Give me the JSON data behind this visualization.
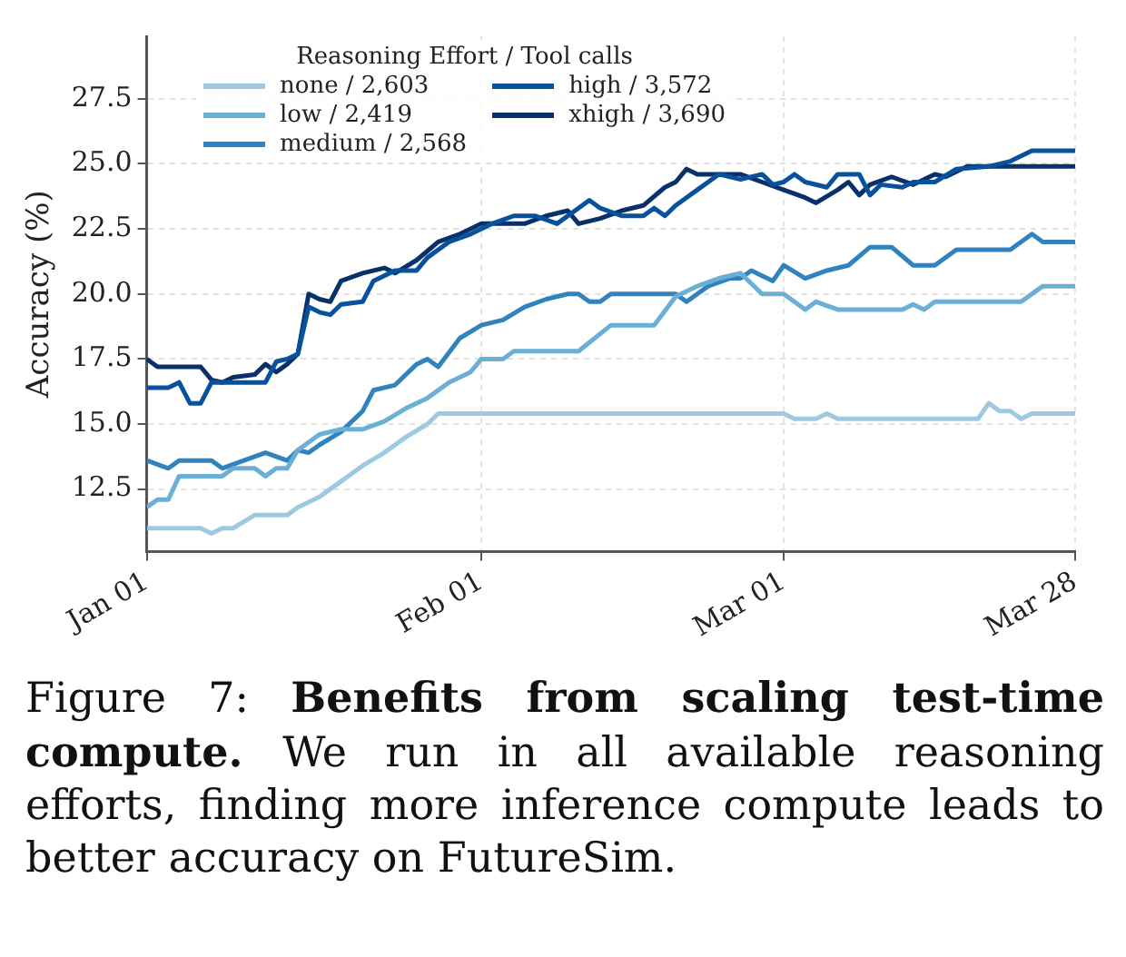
{
  "chart_data": {
    "type": "line",
    "ylabel": "Accuracy (%)",
    "legend_title": "Reasoning Effort / Tool calls",
    "legend": "top left",
    "grid": true,
    "line_style": "solid",
    "marker": "none",
    "xlim": [
      "--01-01",
      "--03-28"
    ],
    "xticks": [
      {
        "value": "--01-01",
        "label": "Jan 01"
      },
      {
        "value": "--02-01",
        "label": "Feb 01"
      },
      {
        "value": "--03-01",
        "label": "Mar 01"
      },
      {
        "value": "--03-28",
        "label": "Mar 28"
      }
    ],
    "ylim": [
      10.1,
      29.9
    ],
    "yticks": [
      {
        "value": 12.5,
        "label": "12.5"
      },
      {
        "value": 15,
        "label": "15.0"
      },
      {
        "value": 17.5,
        "label": "17.5"
      },
      {
        "value": 20,
        "label": "20.0"
      },
      {
        "value": 22.5,
        "label": "22.5"
      },
      {
        "value": 25,
        "label": "25.0"
      },
      {
        "value": 27.5,
        "label": "27.5"
      }
    ],
    "series": [
      {
        "name": "none / 2,603",
        "color": "#9ecae1",
        "x": [
          "--01-01",
          "--01-06",
          "--01-07",
          "--01-08",
          "--01-09",
          "--01-11",
          "--01-14",
          "--01-15",
          "--01-17",
          "--01-19",
          "--01-21",
          "--01-23",
          "--01-25",
          "--01-27",
          "--01-28",
          "--03-01",
          "--03-02",
          "--03-04",
          "--03-05",
          "--03-06",
          "--03-19",
          "--03-20",
          "--03-21",
          "--03-22",
          "--03-23",
          "--03-24",
          "--03-28"
        ],
        "values": [
          11.0,
          11.0,
          10.8,
          11.0,
          11.0,
          11.5,
          11.5,
          11.8,
          12.2,
          12.8,
          13.4,
          13.9,
          14.5,
          15.0,
          15.4,
          15.4,
          15.2,
          15.2,
          15.4,
          15.2,
          15.2,
          15.8,
          15.5,
          15.5,
          15.2,
          15.4,
          15.4
        ]
      },
      {
        "name": "low / 2,419",
        "color": "#6baed6",
        "x": [
          "--01-01",
          "--01-02",
          "--01-03",
          "--01-04",
          "--01-08",
          "--01-09",
          "--01-11",
          "--01-12",
          "--01-13",
          "--01-14",
          "--01-15",
          "--01-17",
          "--01-19",
          "--01-21",
          "--01-23",
          "--01-25",
          "--01-27",
          "--01-29",
          "--01-31",
          "--02-01",
          "--02-03",
          "--02-04",
          "--02-10",
          "--02-13",
          "--02-17",
          "--02-19",
          "--02-21",
          "--02-23",
          "--02-25",
          "--02-27",
          "--03-01",
          "--03-03",
          "--03-04",
          "--03-06",
          "--03-12",
          "--03-13",
          "--03-14",
          "--03-15",
          "--03-23",
          "--03-25",
          "--03-28"
        ],
        "values": [
          11.8,
          12.1,
          12.1,
          13.0,
          13.0,
          13.3,
          13.3,
          13.0,
          13.3,
          13.3,
          14.0,
          14.6,
          14.8,
          14.8,
          15.1,
          15.6,
          16.0,
          16.6,
          17.0,
          17.5,
          17.5,
          17.8,
          17.8,
          18.8,
          18.8,
          19.9,
          20.3,
          20.6,
          20.8,
          20.0,
          20.0,
          19.4,
          19.7,
          19.4,
          19.4,
          19.6,
          19.4,
          19.7,
          19.7,
          20.3,
          20.3
        ]
      },
      {
        "name": "medium / 2,568",
        "color": "#3182bd",
        "x": [
          "--01-01",
          "--01-03",
          "--01-04",
          "--01-07",
          "--01-08",
          "--01-10",
          "--01-12",
          "--01-14",
          "--01-15",
          "--01-16",
          "--01-17",
          "--01-19",
          "--01-21",
          "--01-22",
          "--01-24",
          "--01-26",
          "--01-27",
          "--01-28",
          "--01-30",
          "--02-01",
          "--02-03",
          "--02-05",
          "--02-07",
          "--02-09",
          "--02-10",
          "--02-11",
          "--02-12",
          "--02-13",
          "--02-19",
          "--02-20",
          "--02-21",
          "--02-22",
          "--02-24",
          "--02-25",
          "--02-26",
          "--02-27",
          "--02-28",
          "--03-01",
          "--03-03",
          "--03-05",
          "--03-07",
          "--03-09",
          "--03-11",
          "--03-13",
          "--03-15",
          "--03-17",
          "--03-22",
          "--03-24",
          "--03-25",
          "--03-28"
        ],
        "values": [
          13.6,
          13.3,
          13.6,
          13.6,
          13.3,
          13.6,
          13.9,
          13.6,
          14.0,
          13.9,
          14.2,
          14.7,
          15.5,
          16.3,
          16.5,
          17.3,
          17.5,
          17.2,
          18.3,
          18.8,
          19.0,
          19.5,
          19.8,
          20.0,
          20.0,
          19.7,
          19.7,
          20.0,
          20.0,
          19.7,
          20.0,
          20.3,
          20.6,
          20.6,
          20.9,
          20.7,
          20.5,
          21.1,
          20.6,
          20.9,
          21.1,
          21.8,
          21.8,
          21.1,
          21.1,
          21.7,
          21.7,
          22.3,
          22.0,
          22.0
        ]
      },
      {
        "name": "high / 3,572",
        "color": "#08519c",
        "x": [
          "--01-01",
          "--01-03",
          "--01-04",
          "--01-05",
          "--01-06",
          "--01-07",
          "--01-10",
          "--01-12",
          "--01-13",
          "--01-14",
          "--01-15",
          "--01-16",
          "--01-17",
          "--01-18",
          "--01-19",
          "--01-21",
          "--01-22",
          "--01-24",
          "--01-26",
          "--01-27",
          "--01-29",
          "--01-31",
          "--02-02",
          "--02-04",
          "--02-06",
          "--02-08",
          "--02-10",
          "--02-11",
          "--02-12",
          "--02-14",
          "--02-16",
          "--02-17",
          "--02-18",
          "--02-19",
          "--02-21",
          "--02-23",
          "--02-25",
          "--02-27",
          "--02-28",
          "--03-01",
          "--03-02",
          "--03-03",
          "--03-05",
          "--03-06",
          "--03-08",
          "--03-09",
          "--03-10",
          "--03-12",
          "--03-13",
          "--03-15",
          "--03-17",
          "--03-20",
          "--03-22",
          "--03-24",
          "--03-28"
        ],
        "values": [
          16.4,
          16.4,
          16.6,
          15.8,
          15.8,
          16.6,
          16.6,
          16.6,
          17.4,
          17.5,
          17.7,
          19.5,
          19.3,
          19.2,
          19.6,
          19.7,
          20.5,
          20.9,
          20.9,
          21.4,
          22.0,
          22.3,
          22.7,
          23.0,
          23.0,
          22.7,
          23.3,
          23.6,
          23.3,
          23.0,
          23.0,
          23.3,
          23.0,
          23.4,
          24.0,
          24.6,
          24.4,
          24.6,
          24.2,
          24.3,
          24.6,
          24.3,
          24.1,
          24.6,
          24.6,
          23.8,
          24.2,
          24.1,
          24.3,
          24.3,
          24.8,
          24.9,
          25.1,
          25.5,
          25.5
        ]
      },
      {
        "name": "xhigh / 3,690",
        "color": "#08306b",
        "x": [
          "--01-01",
          "--01-02",
          "--01-06",
          "--01-07",
          "--01-08",
          "--01-09",
          "--01-11",
          "--01-12",
          "--01-13",
          "--01-14",
          "--01-15",
          "--01-16",
          "--01-17",
          "--01-18",
          "--01-19",
          "--01-21",
          "--01-23",
          "--01-24",
          "--01-26",
          "--01-28",
          "--01-30",
          "--02-01",
          "--02-05",
          "--02-07",
          "--02-09",
          "--02-10",
          "--02-12",
          "--02-14",
          "--02-16",
          "--02-18",
          "--02-19",
          "--02-20",
          "--02-21",
          "--02-25",
          "--02-27",
          "--03-01",
          "--03-03",
          "--03-04",
          "--03-06",
          "--03-07",
          "--03-08",
          "--03-09",
          "--03-11",
          "--03-13",
          "--03-15",
          "--03-16",
          "--03-18",
          "--03-28"
        ],
        "values": [
          17.5,
          17.2,
          17.2,
          16.7,
          16.6,
          16.8,
          16.9,
          17.3,
          17.0,
          17.3,
          17.7,
          20.0,
          19.8,
          19.7,
          20.5,
          20.8,
          21.0,
          20.8,
          21.3,
          22.0,
          22.3,
          22.7,
          22.7,
          23.0,
          23.2,
          22.7,
          22.9,
          23.2,
          23.4,
          24.1,
          24.3,
          24.8,
          24.6,
          24.6,
          24.3,
          24.0,
          23.7,
          23.5,
          24.0,
          24.3,
          23.8,
          24.2,
          24.5,
          24.2,
          24.6,
          24.5,
          24.9,
          24.9
        ]
      }
    ],
    "annotations": [
      "Figure 7:",
      "Benefits from scaling test-time compute.",
      "We run in all available reasoning efforts, finding more inference compute leads to better accuracy on FutureSim."
    ]
  }
}
